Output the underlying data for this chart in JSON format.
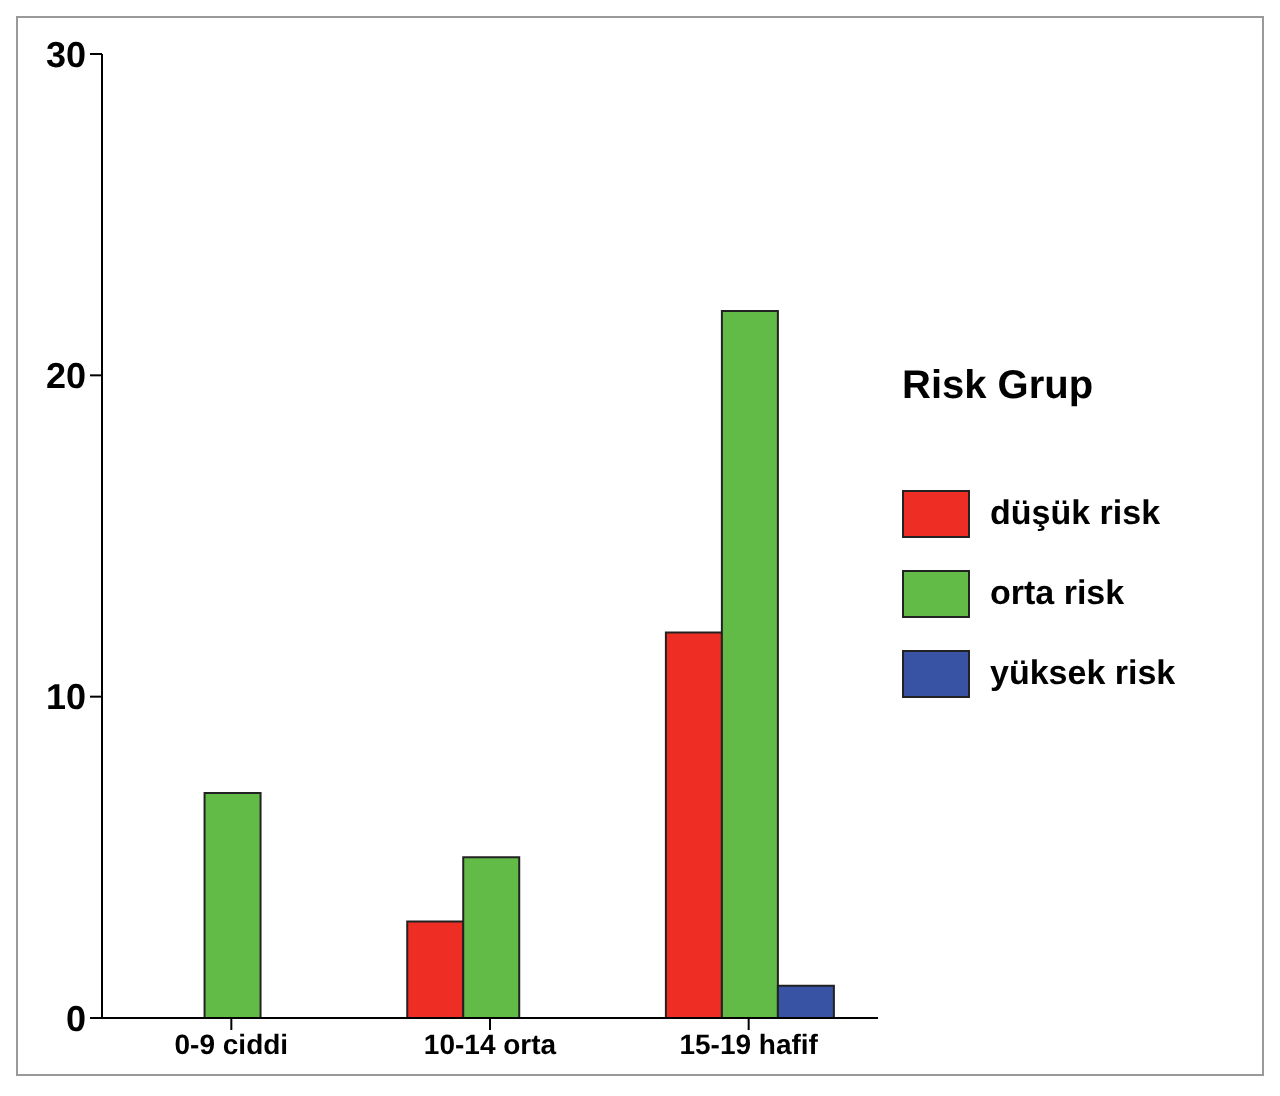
{
  "chart_data": {
    "type": "bar",
    "categories": [
      "0-9 ciddi",
      "10-14 orta",
      "15-19 hafif"
    ],
    "legend_title": "Risk Grup",
    "series": [
      {
        "name": "düşük risk",
        "color": "#ee2e24",
        "values": [
          0,
          3,
          12
        ]
      },
      {
        "name": "orta risk",
        "color": "#62bb46",
        "values": [
          7,
          5,
          22
        ]
      },
      {
        "name": "yüksek risk",
        "color": "#3953a4",
        "values": [
          0,
          0,
          1
        ]
      }
    ],
    "ylim": [
      0,
      30
    ],
    "yticks": [
      0,
      10,
      20,
      30
    ],
    "grid": false,
    "legend": "right"
  }
}
